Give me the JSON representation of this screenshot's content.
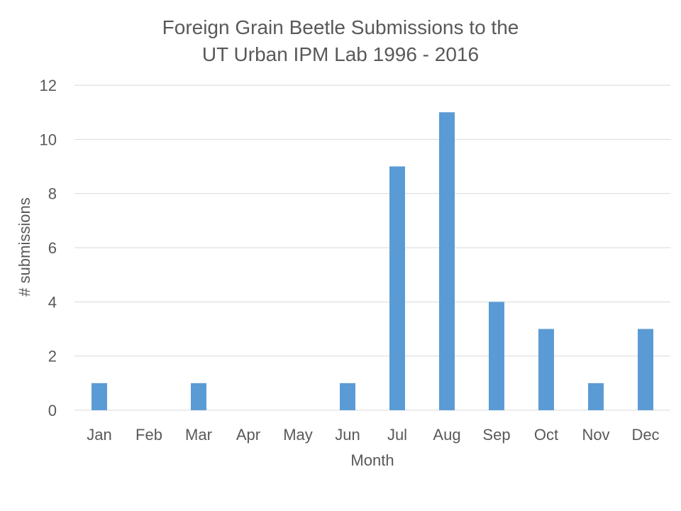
{
  "chart_data": {
    "type": "bar",
    "title": "Foreign Grain Beetle Submissions to the UT Urban IPM Lab 1996 - 2016",
    "title_lines": [
      "Foreign Grain Beetle Submissions to the",
      "UT Urban IPM Lab 1996 - 2016"
    ],
    "xlabel": "Month",
    "ylabel": "# submissions",
    "categories": [
      "Jan",
      "Feb",
      "Mar",
      "Apr",
      "May",
      "Jun",
      "Jul",
      "Aug",
      "Sep",
      "Oct",
      "Nov",
      "Dec"
    ],
    "values": [
      1,
      0,
      1,
      0,
      0,
      1,
      9,
      11,
      4,
      3,
      1,
      3
    ],
    "ylim": [
      0,
      12
    ],
    "yticks": [
      "0",
      "2",
      "4",
      "6",
      "8",
      "10",
      "12"
    ],
    "grid": true,
    "legend": "none",
    "bar_color": "#5b9bd5",
    "grid_color": "#d9d9d9",
    "text_color": "#595959"
  }
}
